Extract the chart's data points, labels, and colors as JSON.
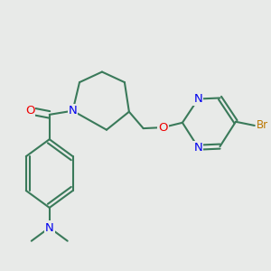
{
  "background_color": "#e8eae8",
  "bond_color": "#3a7a5a",
  "bond_width": 1.5,
  "atom_colors": {
    "O": "#ee0000",
    "N": "#0000ee",
    "Br": "#bb7700",
    "C": "#3a7a5a"
  },
  "font_size_atom": 9.5,
  "font_size_br": 8.5
}
